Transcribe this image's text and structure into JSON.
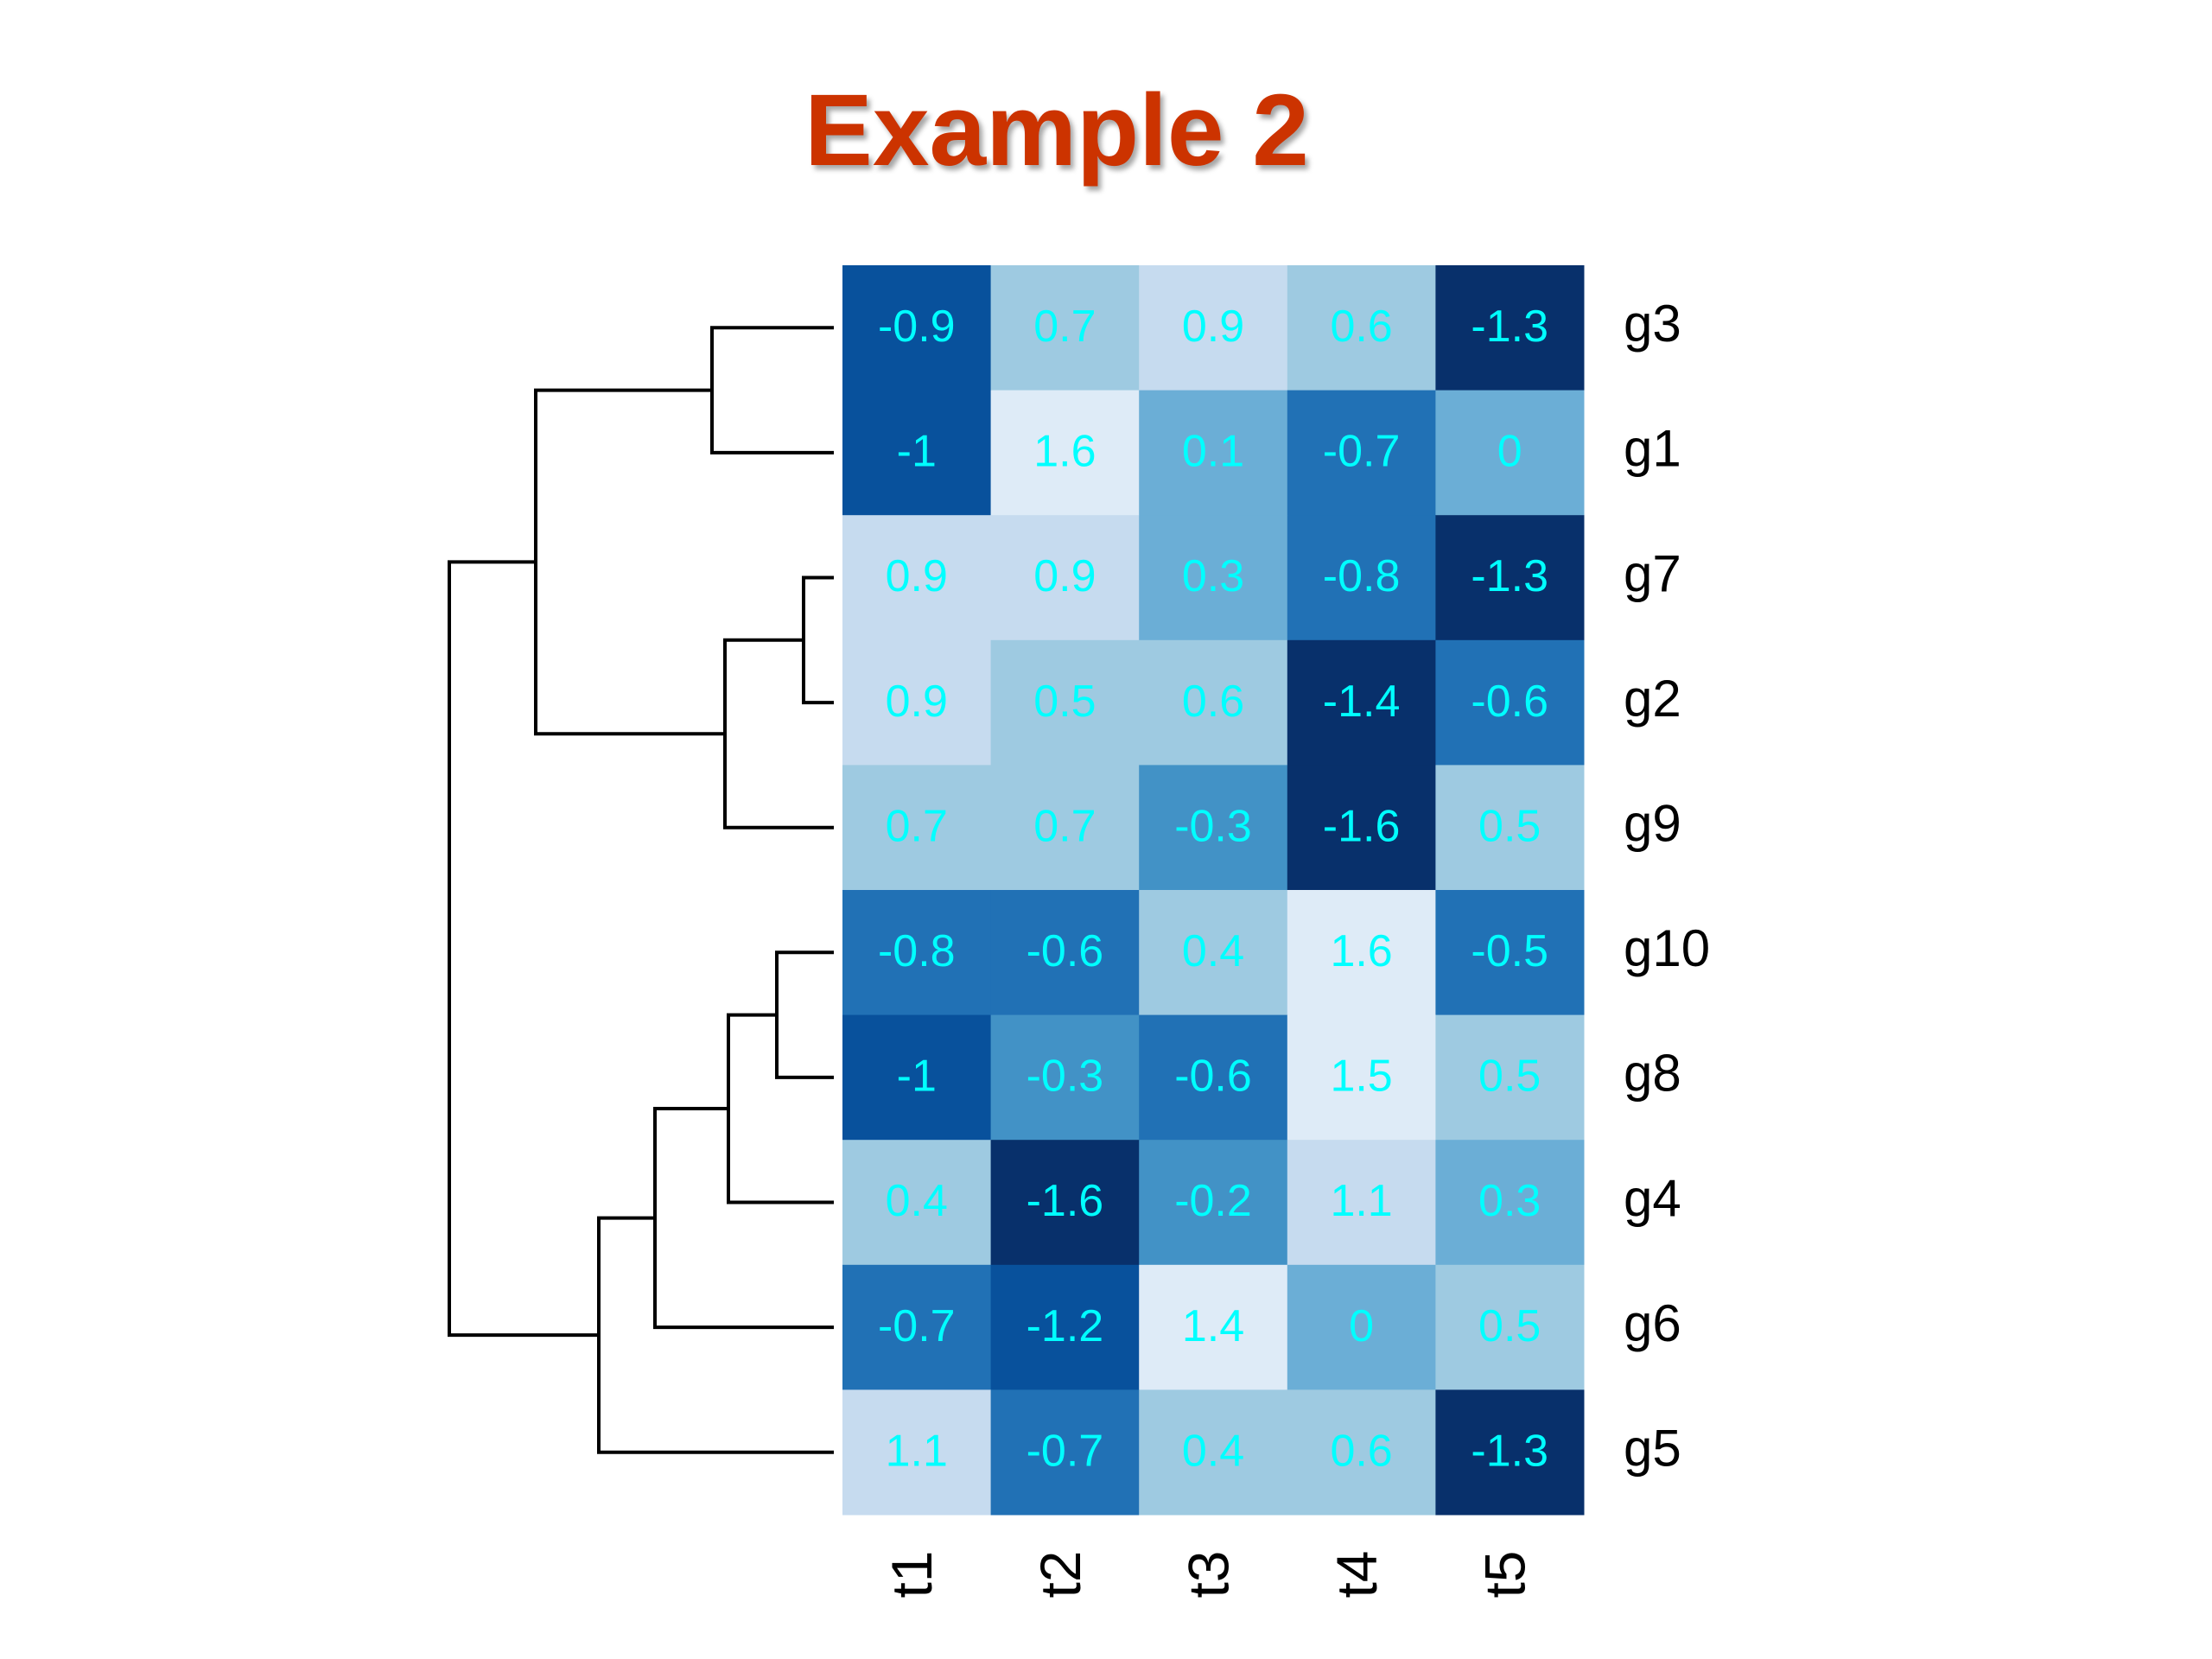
{
  "chart_data": {
    "type": "heatmap",
    "title": "Example 2",
    "rows": [
      "g3",
      "g1",
      "g7",
      "g2",
      "g9",
      "g10",
      "g8",
      "g4",
      "g6",
      "g5"
    ],
    "columns": [
      "t1",
      "t2",
      "t3",
      "t4",
      "t5"
    ],
    "values": [
      [
        -0.9,
        0.7,
        0.9,
        0.6,
        -1.3
      ],
      [
        -1,
        1.6,
        0.1,
        -0.7,
        0
      ],
      [
        0.9,
        0.9,
        0.3,
        -0.8,
        -1.3
      ],
      [
        0.9,
        0.5,
        0.6,
        -1.4,
        -0.6
      ],
      [
        0.7,
        0.7,
        -0.3,
        -1.6,
        0.5
      ],
      [
        -0.8,
        -0.6,
        0.4,
        1.6,
        -0.5
      ],
      [
        -1,
        -0.3,
        -0.6,
        1.5,
        0.5
      ],
      [
        0.4,
        -1.6,
        -0.2,
        1.1,
        0.3
      ],
      [
        -0.7,
        -1.2,
        1.4,
        0,
        0.5
      ],
      [
        1.1,
        -0.7,
        0.4,
        0.6,
        -1.3
      ]
    ],
    "colors": [
      "#08306b",
      "#08519c",
      "#2171b5",
      "#4292c6",
      "#6baed6",
      "#9ecae1",
      "#c6dbef",
      "#deebf7"
    ]
  }
}
